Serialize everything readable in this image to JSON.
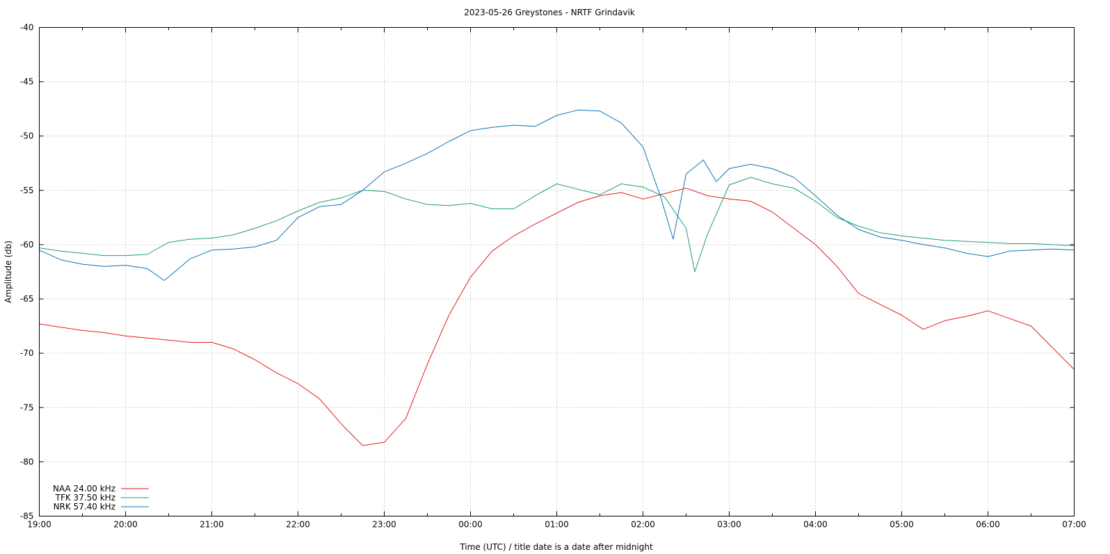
{
  "chart_data": {
    "type": "line",
    "title": "2023-05-26 Greystones - NRTF Grindavik",
    "xlabel": "Time (UTC) / title date is a date after midnight",
    "ylabel": "Amplitude (db)",
    "ylim": [
      -85,
      -40
    ],
    "yticks": [
      -40,
      -45,
      -50,
      -55,
      -60,
      -65,
      -70,
      -75,
      -80,
      -85
    ],
    "xlim_hours": [
      19,
      31
    ],
    "xticks": [
      "19:00",
      "20:00",
      "21:00",
      "22:00",
      "23:00",
      "00:00",
      "01:00",
      "02:00",
      "03:00",
      "04:00",
      "05:00",
      "06:00",
      "07:00"
    ],
    "grid": true,
    "legend_position": "bottom-left",
    "series": [
      {
        "name": "NAA 24.00 kHz",
        "color": "#e41a1c",
        "x_hours": [
          19.0,
          19.25,
          19.5,
          19.75,
          20.0,
          20.25,
          20.5,
          20.75,
          21.0,
          21.25,
          21.5,
          21.75,
          22.0,
          22.25,
          22.5,
          22.75,
          23.0,
          23.25,
          23.5,
          23.75,
          24.0,
          24.25,
          24.5,
          24.75,
          25.0,
          25.25,
          25.5,
          25.75,
          26.0,
          26.25,
          26.5,
          26.75,
          27.0,
          27.25,
          27.5,
          27.75,
          28.0,
          28.25,
          28.5,
          28.75,
          29.0,
          29.25,
          29.5,
          29.75,
          30.0,
          30.25,
          30.5,
          30.75,
          31.0
        ],
        "values": [
          -67.3,
          -67.6,
          -67.9,
          -68.1,
          -68.4,
          -68.6,
          -68.8,
          -69.0,
          -69.0,
          -69.6,
          -70.6,
          -71.8,
          -72.8,
          -74.2,
          -76.5,
          -78.5,
          -78.2,
          -76.0,
          -71.0,
          -66.5,
          -63.0,
          -60.6,
          -59.2,
          -58.1,
          -57.1,
          -56.1,
          -55.5,
          -55.2,
          -55.8,
          -55.3,
          -54.8,
          -55.5,
          -55.8,
          -56.0,
          -57.0,
          -58.5,
          -60.0,
          -62.0,
          -64.5,
          -65.5,
          -66.5,
          -67.8,
          -67.0,
          -66.6,
          -66.1,
          -66.8,
          -67.5,
          -69.5,
          -71.5
        ]
      },
      {
        "name": "TFK 37.50 kHz",
        "color": "#1a9e75",
        "x_hours": [
          19.0,
          19.25,
          19.5,
          19.75,
          20.0,
          20.25,
          20.5,
          20.75,
          21.0,
          21.25,
          21.5,
          21.75,
          22.0,
          22.25,
          22.5,
          22.75,
          23.0,
          23.25,
          23.5,
          23.75,
          24.0,
          24.25,
          24.5,
          24.75,
          25.0,
          25.25,
          25.5,
          25.75,
          26.0,
          26.25,
          26.5,
          26.6,
          26.75,
          27.0,
          27.25,
          27.5,
          27.75,
          28.0,
          28.25,
          28.5,
          28.75,
          29.0,
          29.25,
          29.5,
          29.75,
          30.0,
          30.25,
          30.5,
          30.75,
          31.0
        ],
        "values": [
          -60.3,
          -60.6,
          -60.8,
          -61.0,
          -61.0,
          -60.9,
          -59.8,
          -59.5,
          -59.4,
          -59.1,
          -58.5,
          -57.8,
          -56.9,
          -56.1,
          -55.7,
          -55.0,
          -55.1,
          -55.8,
          -56.3,
          -56.4,
          -56.2,
          -56.7,
          -56.7,
          -55.5,
          -54.4,
          -54.9,
          -55.4,
          -54.4,
          -54.7,
          -55.6,
          -58.5,
          -62.5,
          -59.0,
          -54.5,
          -53.8,
          -54.4,
          -54.8,
          -56.0,
          -57.5,
          -58.3,
          -58.9,
          -59.2,
          -59.4,
          -59.6,
          -59.7,
          -59.8,
          -59.9,
          -59.9,
          -60.0,
          -60.1
        ]
      },
      {
        "name": "NRK 57.40 kHz",
        "color": "#0b74b8",
        "x_hours": [
          19.0,
          19.25,
          19.5,
          19.75,
          20.0,
          20.25,
          20.45,
          20.75,
          21.0,
          21.25,
          21.5,
          21.75,
          22.0,
          22.25,
          22.5,
          22.75,
          23.0,
          23.25,
          23.5,
          23.75,
          24.0,
          24.25,
          24.5,
          24.75,
          25.0,
          25.25,
          25.5,
          25.75,
          26.0,
          26.2,
          26.35,
          26.5,
          26.7,
          26.85,
          27.0,
          27.25,
          27.5,
          27.75,
          28.0,
          28.25,
          28.5,
          28.75,
          29.0,
          29.25,
          29.5,
          29.75,
          30.0,
          30.25,
          30.5,
          30.75,
          31.0
        ],
        "values": [
          -60.5,
          -61.4,
          -61.8,
          -62.0,
          -61.9,
          -62.2,
          -63.3,
          -61.3,
          -60.5,
          -60.4,
          -60.2,
          -59.6,
          -57.5,
          -56.5,
          -56.3,
          -55.0,
          -53.3,
          -52.5,
          -51.6,
          -50.5,
          -49.5,
          -49.2,
          -49.0,
          -49.1,
          -48.1,
          -47.6,
          -47.7,
          -48.8,
          -51.0,
          -55.5,
          -59.5,
          -53.5,
          -52.2,
          -54.2,
          -53.0,
          -52.6,
          -53.0,
          -53.8,
          -55.5,
          -57.3,
          -58.6,
          -59.3,
          -59.6,
          -60.0,
          -60.3,
          -60.8,
          -61.1,
          -60.6,
          -60.5,
          -60.4,
          -60.5
        ]
      }
    ]
  }
}
